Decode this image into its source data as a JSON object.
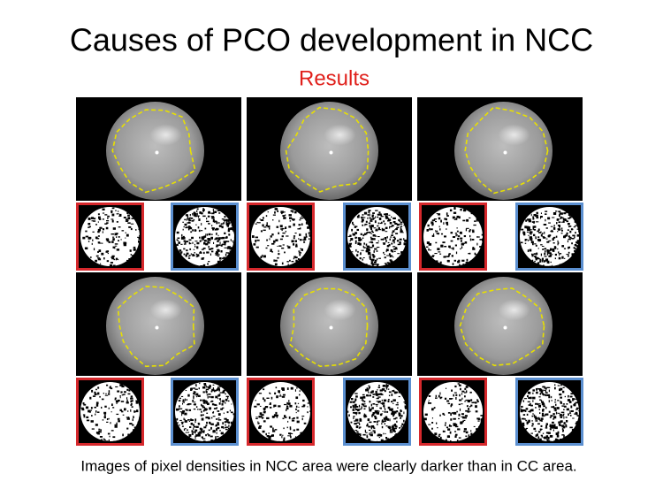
{
  "title": "Causes of PCO development in NCC",
  "subtitle": "Results",
  "caption": "Images of pixel densities in NCC area were clearly darker than in CC area."
}
